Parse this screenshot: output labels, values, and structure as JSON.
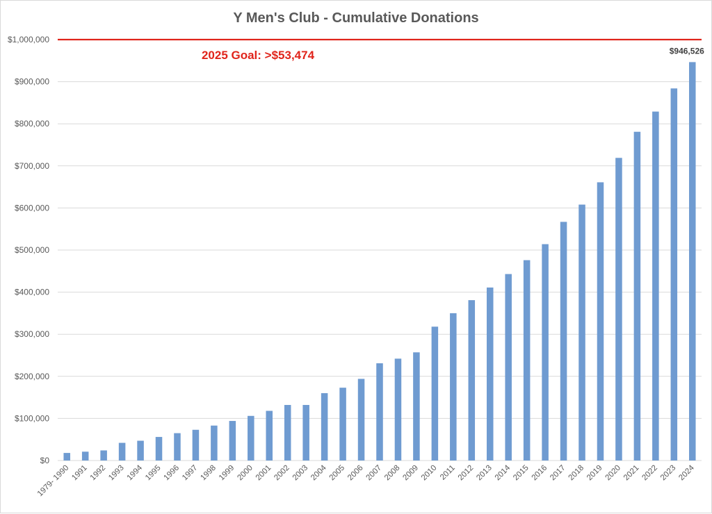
{
  "chart_data": {
    "type": "bar",
    "title": "Y Men's Club - Cumulative Donations",
    "xlabel": "",
    "ylabel": "",
    "categories": [
      "1979- 1990",
      "1991",
      "1992",
      "1993",
      "1994",
      "1995",
      "1996",
      "1997",
      "1998",
      "1999",
      "2000",
      "2001",
      "2002",
      "2003",
      "2004",
      "2005",
      "2006",
      "2007",
      "2008",
      "2009",
      "2010",
      "2011",
      "2012",
      "2013",
      "2014",
      "2015",
      "2016",
      "2017",
      "2018",
      "2019",
      "2020",
      "2021",
      "2022",
      "2023",
      "2024"
    ],
    "values": [
      18000,
      21000,
      24000,
      42000,
      47000,
      56000,
      65000,
      73000,
      83000,
      94000,
      106000,
      118000,
      132000,
      132000,
      160000,
      173000,
      194000,
      231000,
      242000,
      257000,
      318000,
      350000,
      381000,
      411000,
      443000,
      476000,
      514000,
      567000,
      608000,
      661000,
      719000,
      781000,
      829000,
      884000,
      946526
    ],
    "ylim": [
      0,
      1000000
    ],
    "yticks": [
      "$0",
      "$100,000",
      "$200,000",
      "$300,000",
      "$400,000",
      "$500,000",
      "$600,000",
      "$700,000",
      "$800,000",
      "$900,000",
      "$1,000,000"
    ],
    "ytick_values": [
      0,
      100000,
      200000,
      300000,
      400000,
      500000,
      600000,
      700000,
      800000,
      900000,
      1000000
    ],
    "grid": true,
    "legend": "none",
    "bar_color": "#6f9bd1",
    "target_line": {
      "value": 1000000,
      "color": "#e0241b"
    },
    "annotations": [
      {
        "text": "2025 Goal: >$53,474",
        "color": "#e0241b"
      }
    ],
    "data_labels": [
      {
        "category": "2024",
        "text": "$946,526"
      }
    ]
  }
}
